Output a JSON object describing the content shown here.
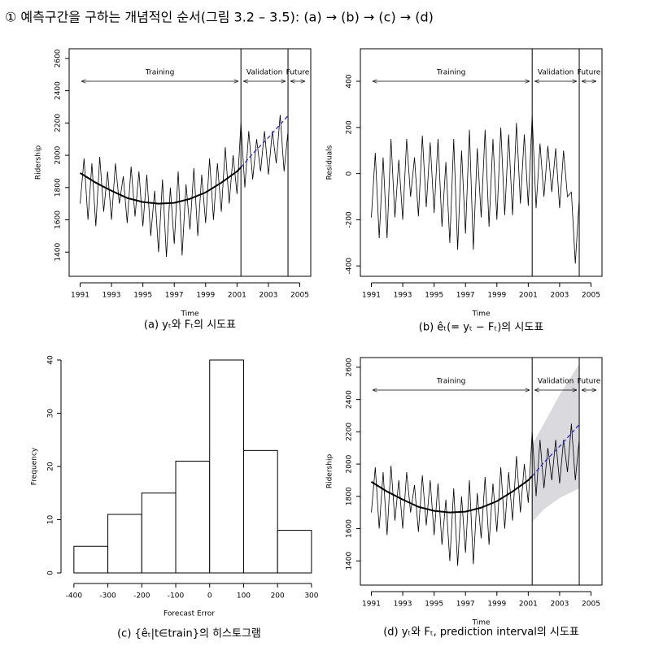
{
  "header": "① 예측구간을 구하는 개념적인 순서(그림 3.2 – 3.5): (a) → (b) → (c) → (d)",
  "chart_data": [
    {
      "type": "line",
      "caption": "(a) yₜ와 Fₜ의 시도표",
      "xlabel": "Time",
      "ylabel": "Ridership",
      "xlim": [
        1990.3,
        2005.7
      ],
      "xticks": [
        1991,
        1993,
        1995,
        1997,
        1999,
        2001,
        2003,
        2005
      ],
      "ylim": [
        1250,
        2660
      ],
      "yticks": [
        1400,
        1600,
        1800,
        2000,
        2200,
        2400,
        2600
      ],
      "partitions": [
        2001.25,
        2004.25
      ],
      "annotations": [
        "Training",
        "Validation",
        "Future"
      ],
      "series": [
        {
          "color": "#000000",
          "width": 0.8,
          "x": [
            1991,
            1991.25,
            1991.5,
            1991.75,
            1992,
            1992.25,
            1992.5,
            1992.75,
            1993,
            1993.25,
            1993.5,
            1993.75,
            1994,
            1994.25,
            1994.5,
            1994.75,
            1995,
            1995.25,
            1995.5,
            1995.75,
            1996,
            1996.25,
            1996.5,
            1996.75,
            1997,
            1997.25,
            1997.5,
            1997.75,
            1998,
            1998.25,
            1998.5,
            1998.75,
            1999,
            1999.25,
            1999.5,
            1999.75,
            2000,
            2000.25,
            2000.5,
            2000.75,
            2001,
            2001.25,
            2001.5,
            2001.75,
            2002,
            2002.25,
            2002.5,
            2002.75,
            2003,
            2003.25,
            2003.5,
            2003.75,
            2004,
            2004.25
          ],
          "values": [
            1700,
            1980,
            1600,
            1950,
            1560,
            1990,
            1650,
            1900,
            1600,
            1950,
            1700,
            1870,
            1580,
            1930,
            1620,
            1900,
            1560,
            1880,
            1500,
            1780,
            1400,
            1850,
            1370,
            1800,
            1450,
            1900,
            1380,
            1820,
            1540,
            1920,
            1500,
            1880,
            1580,
            1980,
            1600,
            1950,
            1650,
            2050,
            1700,
            2000,
            1760,
            2200,
            1800,
            2150,
            1850,
            2100,
            1900,
            2150,
            1880,
            2150,
            1950,
            2250,
            1900,
            2150
          ]
        },
        {
          "color": "#000000",
          "width": 2,
          "x": [
            1991,
            1992,
            1993,
            1994,
            1995,
            1996,
            1997,
            1998,
            1999,
            2000,
            2001,
            2001.25
          ],
          "values": [
            1890,
            1830,
            1780,
            1735,
            1710,
            1700,
            1705,
            1730,
            1770,
            1830,
            1900,
            1925
          ]
        },
        {
          "color": "#2b2bd0",
          "width": 1.3,
          "dashed": true,
          "x": [
            2001.25,
            2002,
            2003,
            2004.25
          ],
          "values": [
            1925,
            2010,
            2110,
            2245
          ]
        }
      ]
    },
    {
      "type": "line",
      "caption": "(b) êₜ(= yₜ − Fₜ)의 시도표",
      "xlabel": "Time",
      "ylabel": "Residuals",
      "xlim": [
        1990.3,
        2005.7
      ],
      "xticks": [
        1991,
        1993,
        1995,
        1997,
        1999,
        2001,
        2003,
        2005
      ],
      "ylim": [
        -445,
        541
      ],
      "yticks": [
        -400,
        -200,
        0,
        200,
        400
      ],
      "partitions": [
        2001.25,
        2004.25
      ],
      "annotations": [
        "Training",
        "Validation",
        "Future"
      ],
      "series": [
        {
          "color": "#000000",
          "width": 0.8,
          "x": [
            1991,
            1991.25,
            1991.5,
            1991.75,
            1992,
            1992.25,
            1992.5,
            1992.75,
            1993,
            1993.25,
            1993.5,
            1993.75,
            1994,
            1994.25,
            1994.5,
            1994.75,
            1995,
            1995.25,
            1995.5,
            1995.75,
            1996,
            1996.25,
            1996.5,
            1996.75,
            1997,
            1997.25,
            1997.5,
            1997.75,
            1998,
            1998.25,
            1998.5,
            1998.75,
            1999,
            1999.25,
            1999.5,
            1999.75,
            2000,
            2000.25,
            2000.5,
            2000.75,
            2001,
            2001.25,
            2001.5,
            2001.75,
            2002,
            2002.25,
            2002.5,
            2002.75,
            2003,
            2003.25,
            2003.5,
            2003.75,
            2004,
            2004.25
          ],
          "values": [
            -190,
            90,
            -280,
            70,
            -280,
            150,
            -190,
            60,
            -200,
            150,
            -100,
            70,
            -185,
            165,
            -145,
            135,
            -170,
            150,
            -230,
            50,
            -300,
            150,
            -330,
            100,
            -260,
            190,
            -330,
            110,
            -190,
            190,
            -230,
            150,
            -200,
            200,
            -180,
            170,
            -180,
            220,
            -130,
            170,
            -140,
            250,
            -150,
            130,
            -100,
            120,
            -80,
            110,
            -150,
            100,
            -100,
            -80,
            -390,
            -110
          ]
        }
      ]
    },
    {
      "type": "histogram",
      "caption": "(c) {êₜ|t∈train}의 히스토그램",
      "xlabel": "Forecast Error",
      "ylabel": "Frequency",
      "xlim": [
        -438,
        317
      ],
      "xticks": [
        -400,
        -300,
        -200,
        -100,
        0,
        100,
        200,
        300
      ],
      "ylim": [
        0,
        40
      ],
      "yticks": [
        0,
        10,
        20,
        30,
        40
      ],
      "bins": [
        -400,
        -300,
        -200,
        -100,
        0,
        100,
        200,
        300
      ],
      "counts": [
        5,
        11,
        15,
        21,
        40,
        23,
        8
      ],
      "color": "#ffffff"
    },
    {
      "type": "line",
      "caption": "(d) yₜ와 Fₜ, prediction interval의 시도표",
      "xlabel": "Time",
      "ylabel": "Ridership",
      "xlim": [
        1990.3,
        2005.7
      ],
      "xticks": [
        1991,
        1993,
        1995,
        1997,
        1999,
        2001,
        2003,
        2005
      ],
      "ylim": [
        1250,
        2660
      ],
      "yticks": [
        1400,
        1600,
        1800,
        2000,
        2200,
        2400,
        2600
      ],
      "partitions": [
        2001.25,
        2004.25
      ],
      "annotations": [
        "Training",
        "Validation",
        "Future"
      ],
      "band": {
        "color": "#d9d9de",
        "x": [
          2001.25,
          2002,
          2003,
          2004.25
        ],
        "lower": [
          1640,
          1720,
          1790,
          1850
        ],
        "upper": [
          2120,
          2250,
          2430,
          2620
        ]
      },
      "series": [
        {
          "color": "#000000",
          "width": 0.8,
          "x": [
            1991,
            1991.25,
            1991.5,
            1991.75,
            1992,
            1992.25,
            1992.5,
            1992.75,
            1993,
            1993.25,
            1993.5,
            1993.75,
            1994,
            1994.25,
            1994.5,
            1994.75,
            1995,
            1995.25,
            1995.5,
            1995.75,
            1996,
            1996.25,
            1996.5,
            1996.75,
            1997,
            1997.25,
            1997.5,
            1997.75,
            1998,
            1998.25,
            1998.5,
            1998.75,
            1999,
            1999.25,
            1999.5,
            1999.75,
            2000,
            2000.25,
            2000.5,
            2000.75,
            2001,
            2001.25,
            2001.5,
            2001.75,
            2002,
            2002.25,
            2002.5,
            2002.75,
            2003,
            2003.25,
            2003.5,
            2003.75,
            2004,
            2004.25
          ],
          "values": [
            1700,
            1980,
            1600,
            1950,
            1560,
            1990,
            1650,
            1900,
            1600,
            1950,
            1700,
            1870,
            1580,
            1930,
            1620,
            1900,
            1560,
            1880,
            1500,
            1780,
            1400,
            1850,
            1370,
            1800,
            1450,
            1900,
            1380,
            1820,
            1540,
            1920,
            1500,
            1880,
            1580,
            1980,
            1600,
            1950,
            1650,
            2050,
            1700,
            2000,
            1760,
            2200,
            1800,
            2150,
            1850,
            2100,
            1900,
            2150,
            1880,
            2150,
            1950,
            2250,
            1900,
            2150
          ]
        },
        {
          "color": "#000000",
          "width": 2,
          "x": [
            1991,
            1992,
            1993,
            1994,
            1995,
            1996,
            1997,
            1998,
            1999,
            2000,
            2001,
            2001.25
          ],
          "values": [
            1890,
            1830,
            1780,
            1735,
            1710,
            1700,
            1705,
            1730,
            1770,
            1830,
            1900,
            1925
          ]
        },
        {
          "color": "#2b2bd0",
          "width": 1.3,
          "dashed": true,
          "x": [
            2001.25,
            2002,
            2003,
            2004.25
          ],
          "values": [
            1925,
            2010,
            2110,
            2245
          ]
        }
      ]
    }
  ]
}
